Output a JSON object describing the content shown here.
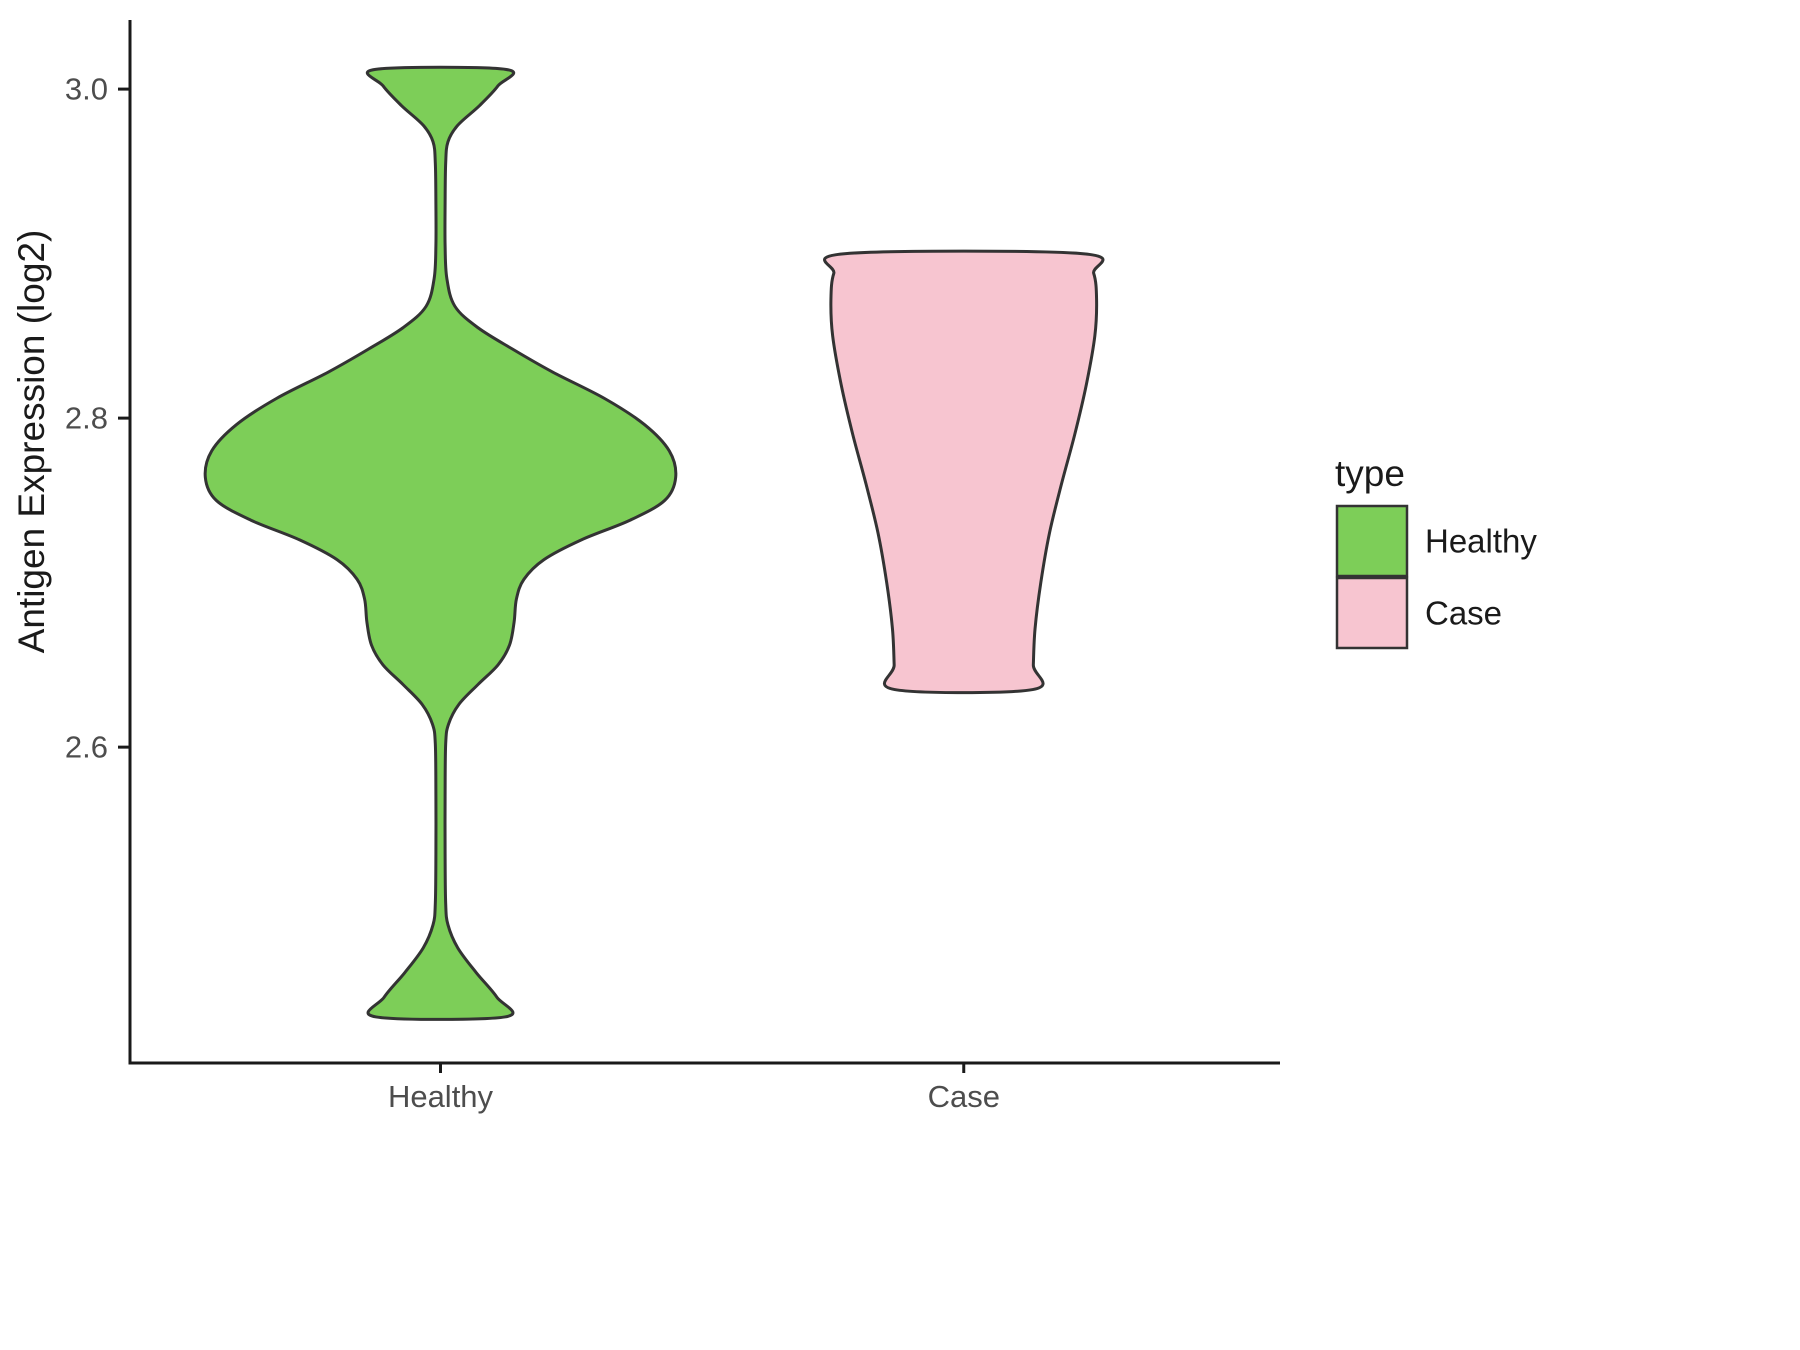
{
  "chart_data": {
    "type": "violin",
    "title": "",
    "xlabel": "",
    "ylabel": "Antigen Expression (log2)",
    "categories": [
      "Healthy",
      "Case"
    ],
    "yticks": [
      2.6,
      2.8,
      3.0
    ],
    "ylim": [
      2.408,
      3.042
    ],
    "grid": false,
    "legend": {
      "title": "type",
      "position": "right",
      "entries": [
        {
          "label": "Healthy",
          "color": "#7DCE58"
        },
        {
          "label": "Case",
          "color": "#F7C5D0"
        }
      ]
    },
    "colors": {
      "outline": "#333333",
      "axis_line": "#1a1a1a",
      "tick_text": "#4D4D4D",
      "title_text": "#1a1a1a"
    },
    "series": [
      {
        "name": "Healthy",
        "fill": "#7DCE58",
        "profile_note": "pairs of [y_value, half_width_in_slot_units]",
        "profile": [
          [
            3.012,
            0.113
          ],
          [
            3.002,
            0.1
          ],
          [
            2.99,
            0.068
          ],
          [
            2.978,
            0.03
          ],
          [
            2.968,
            0.013
          ],
          [
            2.955,
            0.009
          ],
          [
            2.93,
            0.008
          ],
          [
            2.905,
            0.008
          ],
          [
            2.885,
            0.011
          ],
          [
            2.868,
            0.025
          ],
          [
            2.855,
            0.065
          ],
          [
            2.842,
            0.125
          ],
          [
            2.828,
            0.195
          ],
          [
            2.812,
            0.285
          ],
          [
            2.796,
            0.355
          ],
          [
            2.78,
            0.398
          ],
          [
            2.764,
            0.409
          ],
          [
            2.75,
            0.39
          ],
          [
            2.738,
            0.33
          ],
          [
            2.726,
            0.245
          ],
          [
            2.714,
            0.18
          ],
          [
            2.702,
            0.145
          ],
          [
            2.69,
            0.132
          ],
          [
            2.676,
            0.128
          ],
          [
            2.662,
            0.12
          ],
          [
            2.65,
            0.1
          ],
          [
            2.638,
            0.065
          ],
          [
            2.626,
            0.032
          ],
          [
            2.614,
            0.014
          ],
          [
            2.602,
            0.009
          ],
          [
            2.57,
            0.008
          ],
          [
            2.535,
            0.008
          ],
          [
            2.505,
            0.009
          ],
          [
            2.492,
            0.013
          ],
          [
            2.478,
            0.03
          ],
          [
            2.463,
            0.062
          ],
          [
            2.448,
            0.098
          ],
          [
            2.436,
            0.112
          ]
        ]
      },
      {
        "name": "Case",
        "fill": "#F7C5D0",
        "profile_note": "pairs of [y_value, half_width_in_slot_units]",
        "profile": [
          [
            2.9,
            0.205
          ],
          [
            2.888,
            0.226
          ],
          [
            2.872,
            0.231
          ],
          [
            2.85,
            0.228
          ],
          [
            2.82,
            0.213
          ],
          [
            2.79,
            0.193
          ],
          [
            2.76,
            0.17
          ],
          [
            2.73,
            0.149
          ],
          [
            2.7,
            0.134
          ],
          [
            2.672,
            0.124
          ],
          [
            2.65,
            0.121
          ],
          [
            2.635,
            0.12
          ]
        ]
      }
    ]
  }
}
